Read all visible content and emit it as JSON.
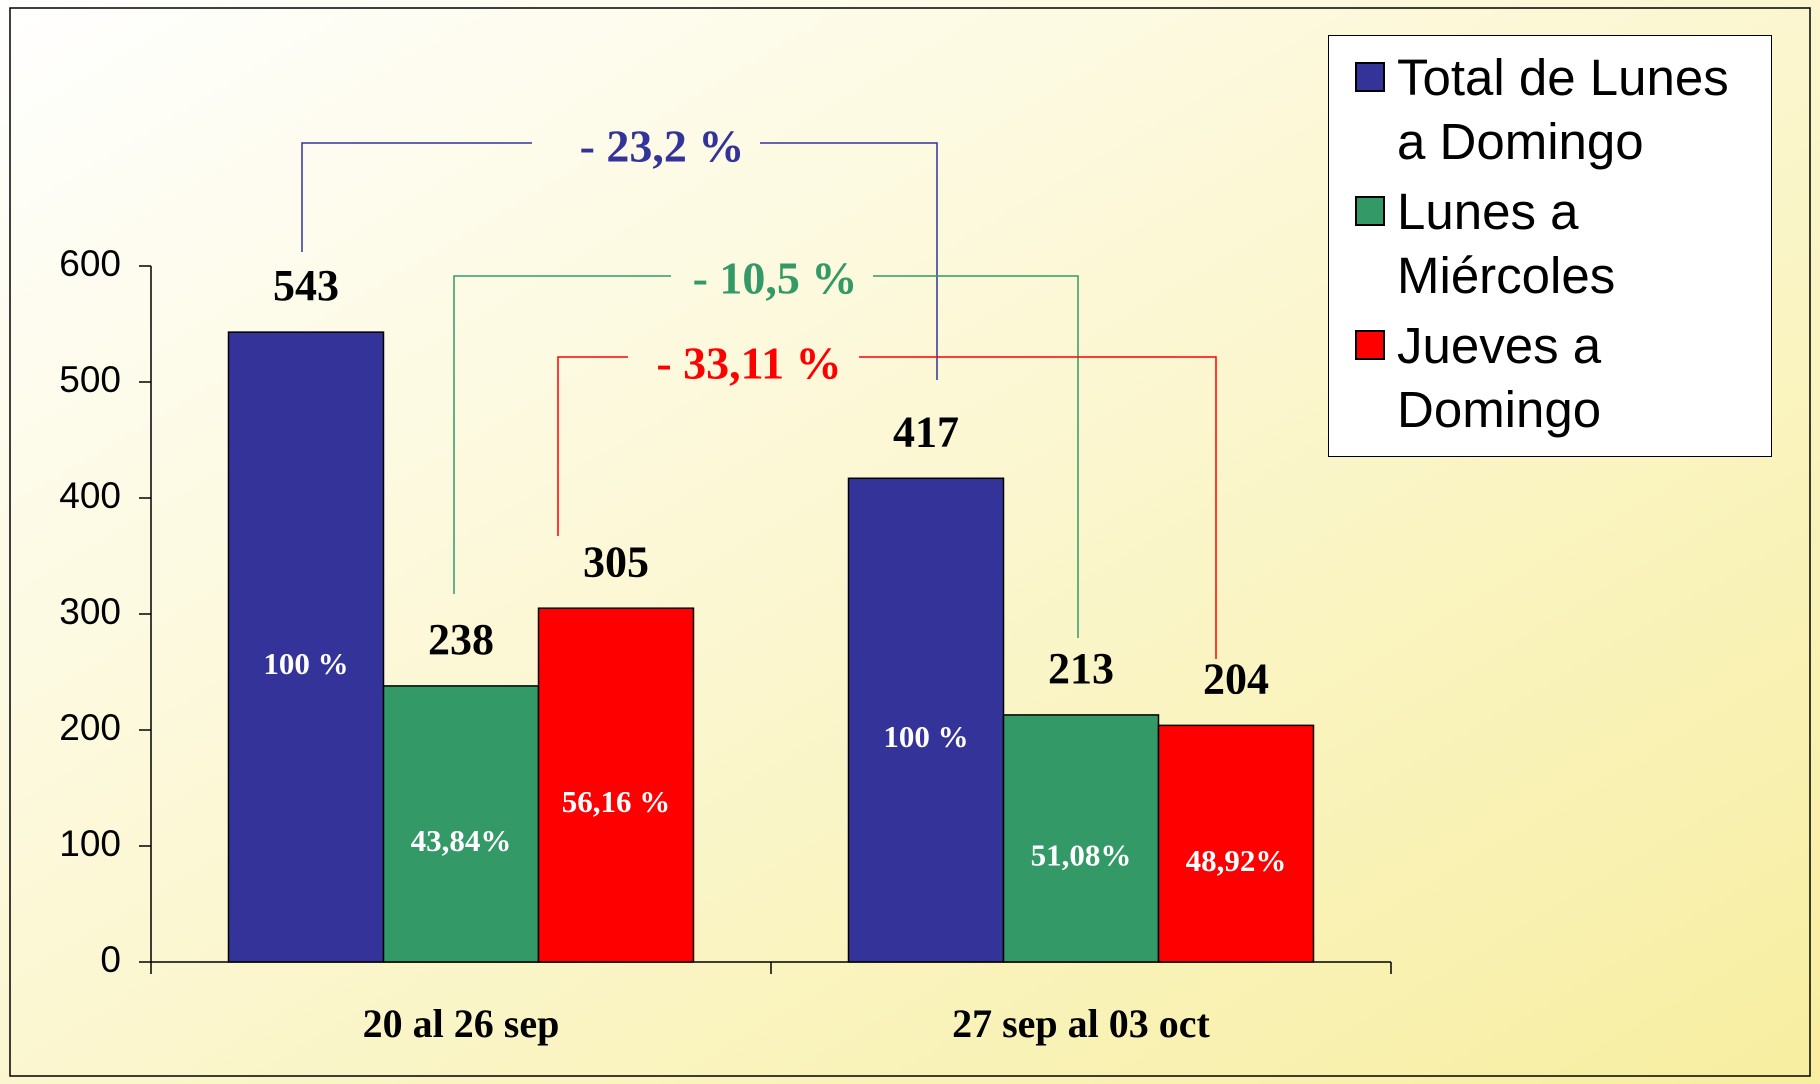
{
  "chart_data": {
    "type": "bar",
    "categories": [
      "20 al 26 sep",
      "27 sep al 03 oct"
    ],
    "series": [
      {
        "name": "Total de Lunes a Domingo",
        "color": "#333399",
        "values": [
          543,
          417
        ],
        "share_labels": [
          "100 %",
          "100 %"
        ]
      },
      {
        "name": "Lunes a Miércoles",
        "color": "#339966",
        "values": [
          238,
          213
        ],
        "share_labels": [
          "43,84%",
          "51,08%"
        ]
      },
      {
        "name": "Jueves a Domingo",
        "color": "#ff0000",
        "values": [
          305,
          204
        ],
        "share_labels": [
          "56,16 %",
          "48,92%"
        ]
      }
    ],
    "annotations": [
      {
        "text": "- 23,2 %",
        "color": "#333399"
      },
      {
        "text": "- 10,5 %",
        "color": "#339966"
      },
      {
        "text": "- 33,11 %",
        "color": "#ff0000"
      }
    ],
    "ylim": [
      0,
      600
    ],
    "yticks": [
      0,
      100,
      200,
      300,
      400,
      500,
      600
    ],
    "legend": "top-right"
  }
}
